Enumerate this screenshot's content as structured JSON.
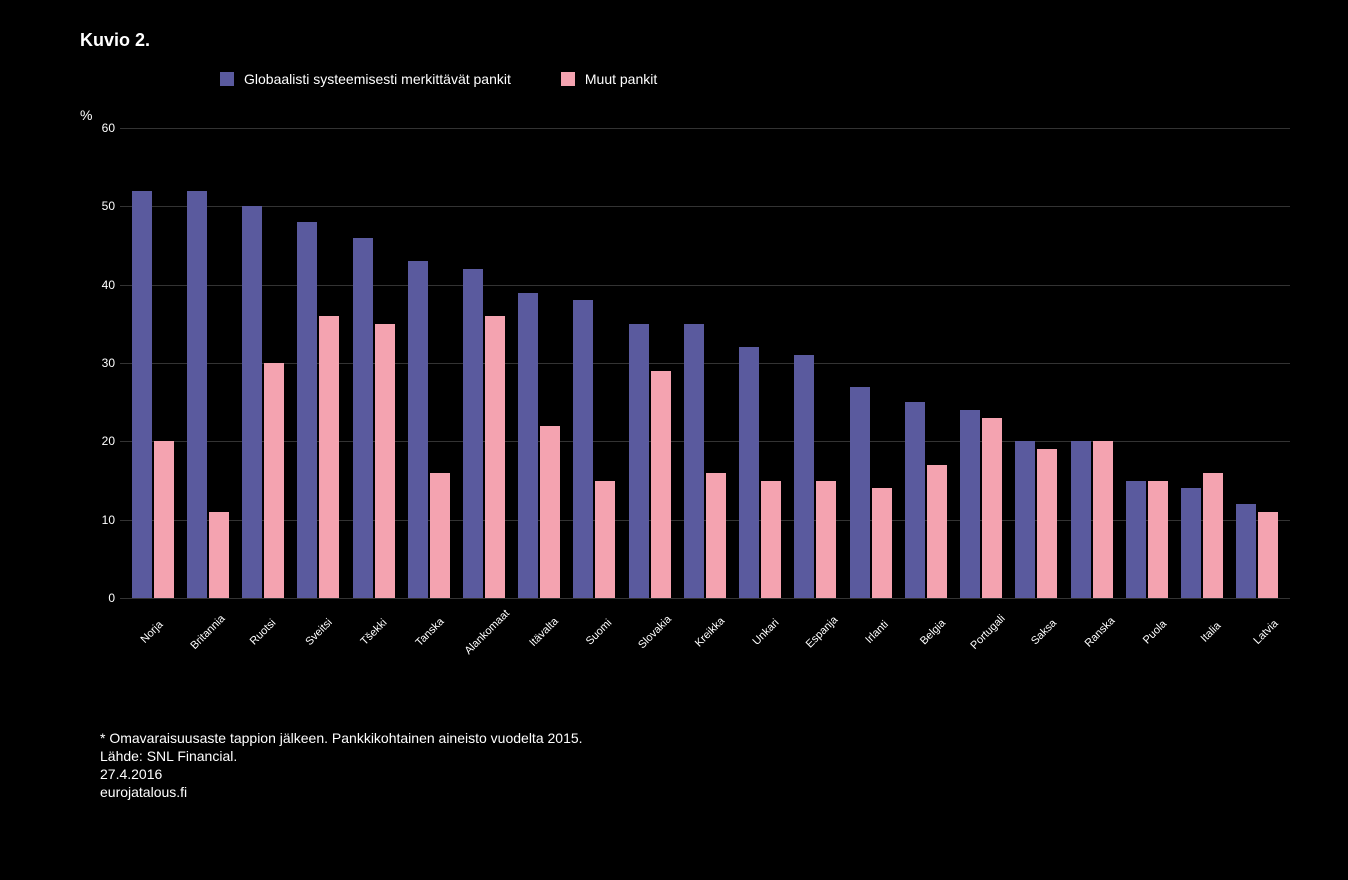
{
  "chart": {
    "type": "bar",
    "title": "Kuvio 2.",
    "y_axis_title": "%",
    "background_color": "#000000",
    "text_color": "#ffffff",
    "grid_color": "#333333",
    "ylim": [
      0,
      60
    ],
    "ytick_step": 10,
    "yticks": [
      0,
      10,
      20,
      30,
      40,
      50,
      60
    ],
    "legend": {
      "items": [
        {
          "label": "Globaalisti systeemisesti merkittävät pankit",
          "color": "#5a5a9e"
        },
        {
          "label": "Muut pankit",
          "color": "#f4a3b0"
        }
      ]
    },
    "categories": [
      "Norja",
      "Britannia",
      "Ruotsi",
      "Sveitsi",
      "Tšekki",
      "Tanska",
      "Alankomaat",
      "Itävalta",
      "Suomi",
      "Slovakia",
      "Kreikka",
      "Unkari",
      "Espanja",
      "Irlanti",
      "Belgia",
      "Portugali",
      "Saksa",
      "Ranska",
      "Puola",
      "Italia",
      "Latvia"
    ],
    "series": [
      {
        "name": "Globaalisti systeemisesti merkittävät pankit",
        "color": "#5a5a9e",
        "values": [
          52,
          52,
          50,
          48,
          46,
          43,
          42,
          39,
          38,
          35,
          35,
          32,
          31,
          27,
          25,
          24,
          20,
          20,
          15,
          14,
          12
        ]
      },
      {
        "name": "Muut pankit",
        "color": "#f4a3b0",
        "values": [
          20,
          11,
          30,
          36,
          35,
          16,
          36,
          22,
          15,
          29,
          16,
          15,
          15,
          14,
          17,
          23,
          19,
          20,
          15,
          16,
          11
        ]
      }
    ],
    "footer": {
      "note": "* Omavaraisuusaste tappion jälkeen. Pankkikohtainen aineisto vuodelta 2015.",
      "source": "Lähde: SNL Financial.",
      "date": "27.4.2016",
      "site": "eurojatalous.fi"
    }
  }
}
